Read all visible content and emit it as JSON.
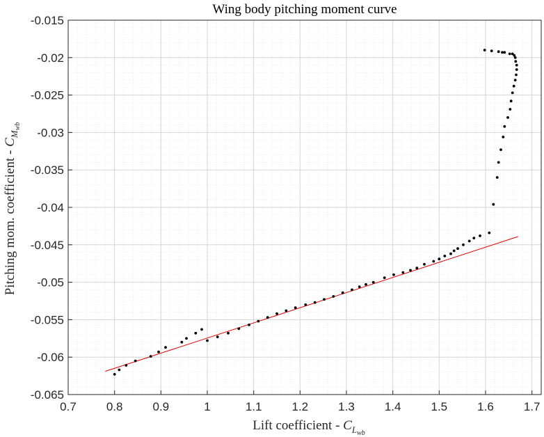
{
  "chart_data": {
    "type": "scatter",
    "title": "Wing body pitching moment curve",
    "xlabel_main": "Lift coefficient - ",
    "xlabel_symbol": "C",
    "xlabel_subscript": "L",
    "xlabel_subsubscript": "wb",
    "ylabel_main": "Pitching mom. coefficient - ",
    "ylabel_symbol": "C",
    "ylabel_subscript": "M",
    "ylabel_subsubscript": "wb",
    "xlim": [
      0.7,
      1.72
    ],
    "ylim": [
      -0.065,
      -0.015
    ],
    "xticks": [
      "0.7",
      "0.8",
      "0.9",
      "1",
      "1.1",
      "1.2",
      "1.3",
      "1.4",
      "1.5",
      "1.6",
      "1.7"
    ],
    "yticks": [
      "-0.065",
      "-0.06",
      "-0.055",
      "-0.05",
      "-0.045",
      "-0.04",
      "-0.035",
      "-0.03",
      "-0.025",
      "-0.02",
      "-0.015"
    ],
    "grid": true,
    "minor_grid": true,
    "colors": {
      "points": "#000000",
      "fit": "#e00000",
      "axes": "#262626",
      "grid": "#d9d9d9"
    },
    "points": [
      [
        0.8,
        -0.0623
      ],
      [
        0.81,
        -0.0617
      ],
      [
        0.825,
        -0.0611
      ],
      [
        0.845,
        -0.0605
      ],
      [
        0.878,
        -0.0599
      ],
      [
        0.895,
        -0.0593
      ],
      [
        0.91,
        -0.0587
      ],
      [
        0.945,
        -0.058
      ],
      [
        0.955,
        -0.0575
      ],
      [
        0.975,
        -0.0568
      ],
      [
        0.988,
        -0.0563
      ],
      [
        1.0,
        -0.0578
      ],
      [
        1.022,
        -0.0573
      ],
      [
        1.045,
        -0.0568
      ],
      [
        1.068,
        -0.0562
      ],
      [
        1.09,
        -0.0557
      ],
      [
        1.11,
        -0.0552
      ],
      [
        1.13,
        -0.0547
      ],
      [
        1.15,
        -0.0542
      ],
      [
        1.17,
        -0.0538
      ],
      [
        1.19,
        -0.0534
      ],
      [
        1.212,
        -0.053
      ],
      [
        1.232,
        -0.0527
      ],
      [
        1.252,
        -0.0523
      ],
      [
        1.272,
        -0.0519
      ],
      [
        1.292,
        -0.0514
      ],
      [
        1.312,
        -0.051
      ],
      [
        1.328,
        -0.0506
      ],
      [
        1.342,
        -0.0503
      ],
      [
        1.358,
        -0.05
      ],
      [
        1.382,
        -0.0494
      ],
      [
        1.402,
        -0.049
      ],
      [
        1.422,
        -0.0487
      ],
      [
        1.438,
        -0.0484
      ],
      [
        1.452,
        -0.0481
      ],
      [
        1.468,
        -0.0476
      ],
      [
        1.488,
        -0.0472
      ],
      [
        1.5,
        -0.0469
      ],
      [
        1.512,
        -0.0465
      ],
      [
        1.525,
        -0.0462
      ],
      [
        1.532,
        -0.0458
      ],
      [
        1.54,
        -0.0455
      ],
      [
        1.552,
        -0.045
      ],
      [
        1.565,
        -0.0445
      ],
      [
        1.575,
        -0.0441
      ],
      [
        1.588,
        -0.0438
      ],
      [
        1.608,
        -0.0434
      ],
      [
        1.617,
        -0.0396
      ],
      [
        1.625,
        -0.036
      ],
      [
        1.628,
        -0.034
      ],
      [
        1.633,
        -0.0323
      ],
      [
        1.638,
        -0.0306
      ],
      [
        1.641,
        -0.0292
      ],
      [
        1.648,
        -0.028
      ],
      [
        1.653,
        -0.0269
      ],
      [
        1.655,
        -0.0258
      ],
      [
        1.658,
        -0.0247
      ],
      [
        1.661,
        -0.0238
      ],
      [
        1.664,
        -0.023
      ],
      [
        1.666,
        -0.0223
      ],
      [
        1.667,
        -0.0216
      ],
      [
        1.667,
        -0.021
      ],
      [
        1.665,
        -0.0205
      ],
      [
        1.664,
        -0.02
      ],
      [
        1.662,
        -0.0197
      ],
      [
        1.658,
        -0.0195
      ],
      [
        1.652,
        -0.0195
      ],
      [
        1.641,
        -0.0193
      ],
      [
        1.636,
        -0.0193
      ],
      [
        1.628,
        -0.0192
      ],
      [
        1.613,
        -0.0191
      ],
      [
        1.598,
        -0.019
      ]
    ],
    "fit_line": [
      [
        0.78,
        -0.0619
      ],
      [
        1.67,
        -0.0439
      ]
    ]
  }
}
